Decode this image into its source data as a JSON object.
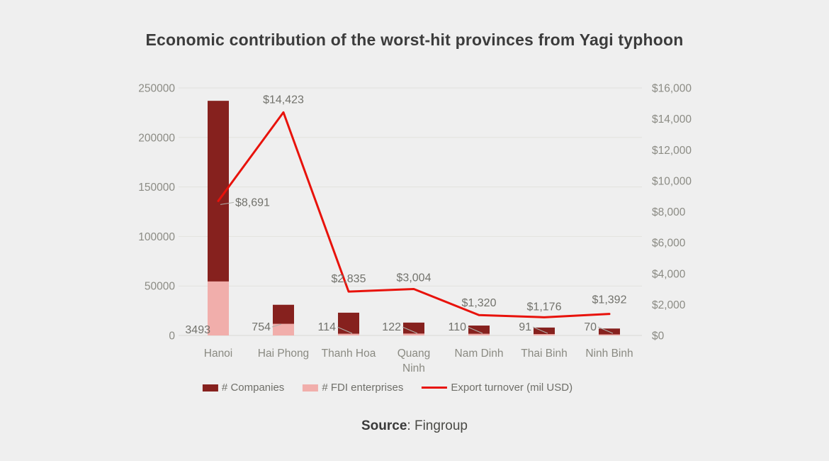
{
  "chart_data": {
    "type": "combo",
    "title": "Economic contribution of the worst-hit provinces from Yagi typhoon",
    "categories": [
      "Hanoi",
      "Hai Phong",
      "Thanh Hoa",
      "Quang Ninh",
      "Nam Dinh",
      "Thai Binh",
      "Ninh Binh"
    ],
    "series": [
      {
        "name": "# Companies",
        "chart_type": "bar",
        "axis": "left",
        "color": "#86211E",
        "values": [
          237000,
          31000,
          23000,
          13000,
          10000,
          8000,
          7000
        ]
      },
      {
        "name": "# FDI enterprises",
        "chart_type": "bar",
        "axis": "right",
        "color": "#F1AEAB",
        "values": [
          3493,
          754,
          114,
          122,
          110,
          91,
          70
        ],
        "labels": [
          "3493",
          "754",
          "114",
          "122",
          "110",
          "91",
          "70"
        ]
      },
      {
        "name": "Export turnover (mil USD)",
        "chart_type": "line",
        "axis": "right",
        "color": "#E8120B",
        "values": [
          8691,
          14423,
          2835,
          3004,
          1320,
          1176,
          1392
        ],
        "labels": [
          "$8,691",
          "$14,423",
          "$2,835",
          "$3,004",
          "$1,320",
          "$1,176",
          "$1,392"
        ]
      }
    ],
    "axis_left": {
      "max": 250000,
      "labels": [
        "250000",
        "200000",
        "150000",
        "100000",
        "50000",
        "0"
      ]
    },
    "axis_right": {
      "max": 16000,
      "labels": [
        "$16,000",
        "$14,000",
        "$12,000",
        "$10,000",
        "$8,000",
        "$6,000",
        "$4,000",
        "$2,000",
        "$0"
      ]
    },
    "grid": true,
    "legend_position": "bottom"
  },
  "source": {
    "label": "Source",
    "separator": ": ",
    "value": "Fingroup"
  }
}
